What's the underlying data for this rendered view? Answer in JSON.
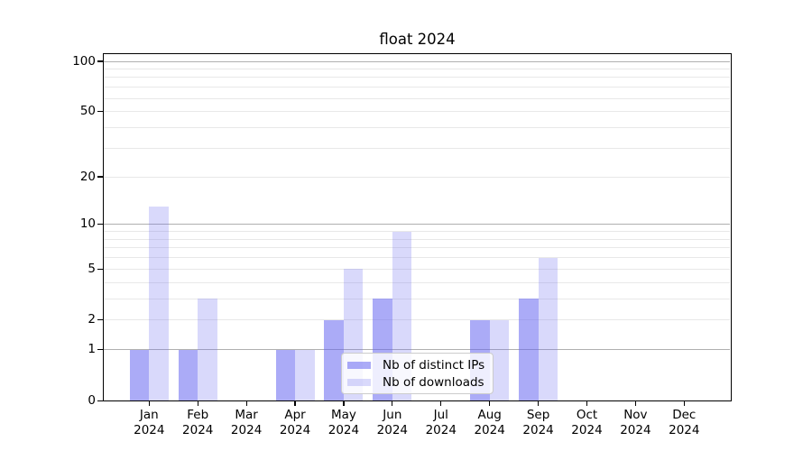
{
  "title": "float 2024",
  "chart_data": {
    "type": "bar",
    "title": "float 2024",
    "categories": [
      "Jan 2024",
      "Feb 2024",
      "Mar 2024",
      "Apr 2024",
      "May 2024",
      "Jun 2024",
      "Jul 2024",
      "Aug 2024",
      "Sep 2024",
      "Oct 2024",
      "Nov 2024",
      "Dec 2024"
    ],
    "series": [
      {
        "name": "Nb of distinct IPs",
        "color": "rgba(102,102,240,0.55)",
        "values": [
          1,
          1,
          0,
          1,
          2,
          3,
          0,
          2,
          3,
          0,
          0,
          0
        ]
      },
      {
        "name": "Nb of downloads",
        "color": "rgba(102,102,240,0.25)",
        "values": [
          13,
          3,
          0,
          1,
          5,
          9,
          0,
          2,
          6,
          0,
          0,
          0
        ]
      }
    ],
    "xlabel": "",
    "ylabel": "",
    "y_scale": "log1p",
    "ylim": [
      0,
      110
    ],
    "y_ticks": [
      100,
      50,
      20,
      10,
      5,
      2,
      1,
      0
    ],
    "y_major_gridlines": [
      100,
      10,
      1
    ],
    "y_minor_gridlines": [
      90,
      80,
      70,
      60,
      50,
      40,
      30,
      20,
      9,
      8,
      7,
      6,
      5,
      4,
      3,
      2
    ],
    "grid": true,
    "legend_position": "lower center",
    "colors": {
      "major_grid": "#b0b0b0",
      "minor_grid": "#e8e8e8",
      "spine": "#000000",
      "background": "#ffffff"
    }
  }
}
